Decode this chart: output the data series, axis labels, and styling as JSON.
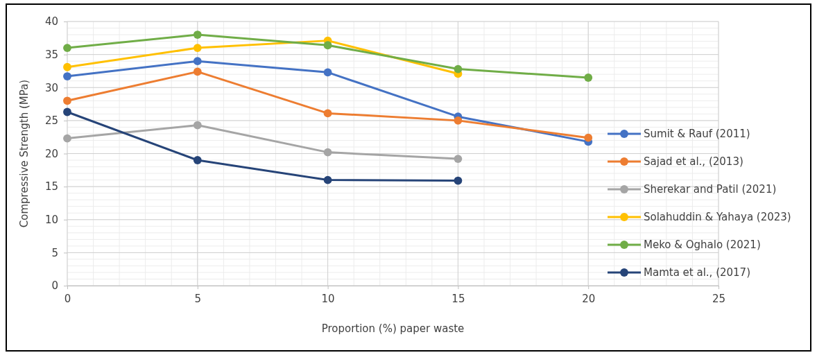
{
  "chart_data": {
    "type": "line",
    "xlabel": "Proportion (%) paper waste",
    "ylabel": "Compressive Strength (MPa)",
    "xlim": [
      0,
      25
    ],
    "xticks": [
      0,
      5,
      10,
      15,
      20,
      25
    ],
    "ylim": [
      0,
      40
    ],
    "yticks": [
      0,
      5,
      10,
      15,
      20,
      25,
      30,
      35,
      40
    ],
    "grid": true,
    "legend": "right",
    "marker": "circle",
    "line_style": "solid",
    "series": [
      {
        "name": "Sumit & Rauf (2011)",
        "color": "#4472c4",
        "x": [
          0,
          5,
          10,
          15,
          20
        ],
        "values": [
          31.7,
          34.0,
          32.3,
          25.6,
          21.8
        ]
      },
      {
        "name": "Sajad et al., (2013)",
        "color": "#ed7d31",
        "x": [
          0,
          5,
          10,
          15,
          20
        ],
        "values": [
          28.0,
          32.4,
          26.1,
          25.0,
          22.4
        ]
      },
      {
        "name": "Sherekar and Patil (2021)",
        "color": "#a5a5a5",
        "x": [
          0,
          5,
          10,
          15
        ],
        "values": [
          22.3,
          24.3,
          20.2,
          19.2
        ]
      },
      {
        "name": "Solahuddin & Yahaya (2023)",
        "color": "#ffc000",
        "x": [
          0,
          5,
          10,
          15
        ],
        "values": [
          33.1,
          36.0,
          37.1,
          32.1
        ]
      },
      {
        "name": "Meko & Oghalo (2021)",
        "color": "#70ad47",
        "x": [
          0,
          5,
          10,
          15,
          20
        ],
        "values": [
          36.0,
          38.0,
          36.4,
          32.8,
          31.5
        ]
      },
      {
        "name": "Mamta et al., (2017)",
        "color": "#264478",
        "x": [
          0,
          5,
          10,
          15
        ],
        "values": [
          26.3,
          19.0,
          16.0,
          15.9
        ]
      }
    ]
  }
}
